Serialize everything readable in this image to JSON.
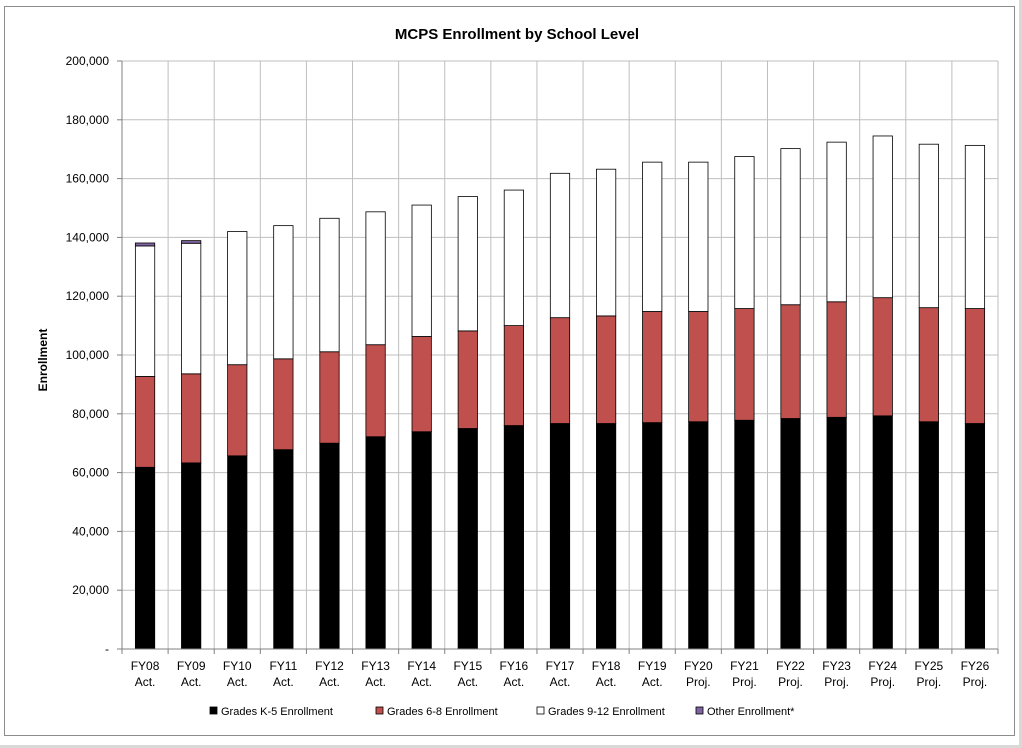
{
  "chart_data": {
    "type": "bar",
    "stacked": true,
    "title": "MCPS Enrollment by School Level",
    "xlabel": "",
    "ylabel": "Enrollment",
    "ylim": [
      0,
      200000
    ],
    "y_ticks": [
      0,
      20000,
      40000,
      60000,
      80000,
      100000,
      120000,
      140000,
      160000,
      180000,
      200000
    ],
    "y_tick_labels": [
      "-",
      "20,000",
      "40,000",
      "60,000",
      "80,000",
      "100,000",
      "120,000",
      "140,000",
      "160,000",
      "180,000",
      "200,000"
    ],
    "grid": true,
    "legend_position": "bottom",
    "categories": [
      [
        "FY08",
        "Act."
      ],
      [
        "FY09",
        "Act."
      ],
      [
        "FY10",
        "Act."
      ],
      [
        "FY11",
        "Act."
      ],
      [
        "FY12",
        "Act."
      ],
      [
        "FY13",
        "Act."
      ],
      [
        "FY14",
        "Act."
      ],
      [
        "FY15",
        "Act."
      ],
      [
        "FY16",
        "Act."
      ],
      [
        "FY17",
        "Act."
      ],
      [
        "FY18",
        "Act."
      ],
      [
        "FY19",
        "Act."
      ],
      [
        "FY20",
        "Proj."
      ],
      [
        "FY21",
        "Proj."
      ],
      [
        "FY22",
        "Proj."
      ],
      [
        "FY23",
        "Proj."
      ],
      [
        "FY24",
        "Proj."
      ],
      [
        "FY25",
        "Proj."
      ],
      [
        "FY26",
        "Proj."
      ]
    ],
    "series": [
      {
        "name": "Grades K-5 Enrollment",
        "color": "#000000",
        "values": [
          61800,
          63300,
          65700,
          67800,
          70000,
          72200,
          73900,
          75000,
          76000,
          76700,
          76700,
          77000,
          77300,
          77800,
          78400,
          78800,
          79300,
          77300,
          76700
        ]
      },
      {
        "name": "Grades 6-8 Enrollment",
        "color": "#c0504d",
        "values": [
          30900,
          30300,
          31000,
          30900,
          31100,
          31300,
          32400,
          33200,
          34000,
          36000,
          36600,
          37800,
          37500,
          38000,
          38700,
          39300,
          40200,
          38800,
          39100
        ]
      },
      {
        "name": "Grades 9-12 Enrollment",
        "color": "#ffffff",
        "values": [
          44400,
          44400,
          45300,
          45300,
          45400,
          45200,
          44700,
          45700,
          46100,
          49100,
          49900,
          50800,
          50800,
          51700,
          53100,
          54300,
          55000,
          55600,
          55500
        ]
      },
      {
        "name": "Other Enrollment*",
        "color": "#8064a2",
        "values": [
          1000,
          900,
          0,
          0,
          0,
          0,
          0,
          0,
          0,
          0,
          0,
          0,
          0,
          0,
          0,
          0,
          0,
          0,
          0
        ]
      }
    ]
  }
}
